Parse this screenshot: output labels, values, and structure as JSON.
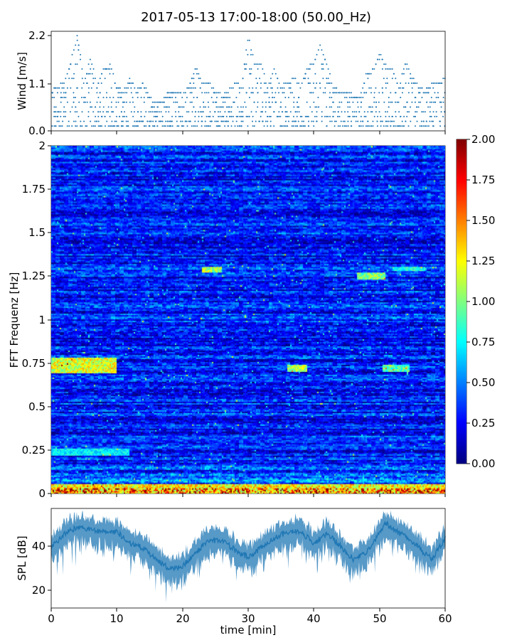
{
  "figure": {
    "title": "2017-05-13 17:00-18:00 (50.00_Hz)"
  },
  "chart_data": [
    {
      "type": "scatter",
      "ylabel": "Wind [m/s]",
      "ylim": [
        0.0,
        2.3
      ],
      "xlim": [
        0,
        60
      ],
      "yticks": [
        "0.0",
        "1.1",
        "2.2"
      ],
      "marker_color": "#1f77b4",
      "envelope_x_min": [
        0,
        2,
        3,
        4,
        5,
        6,
        7,
        8,
        9,
        10,
        11,
        12,
        13,
        14,
        15,
        16,
        17,
        18,
        19,
        20,
        21,
        22,
        23,
        24,
        25,
        26,
        27,
        28,
        29,
        30,
        31,
        32,
        33,
        34,
        35,
        36,
        37,
        38,
        39,
        40,
        41,
        42,
        43,
        44,
        45,
        46,
        47,
        48,
        49,
        50,
        51,
        52,
        53,
        54,
        55,
        56,
        57,
        58,
        59,
        60
      ],
      "envelope_max_mps": [
        0.9,
        1.1,
        1.6,
        2.2,
        1.1,
        1.7,
        1.0,
        1.4,
        1.5,
        1.0,
        0.9,
        1.2,
        0.9,
        1.1,
        0.8,
        0.6,
        0.7,
        0.9,
        0.9,
        0.8,
        1.0,
        1.5,
        1.1,
        1.1,
        0.9,
        0.8,
        0.9,
        1.1,
        1.0,
        2.2,
        1.5,
        1.5,
        1.0,
        1.4,
        1.0,
        1.1,
        1.2,
        1.0,
        1.4,
        1.6,
        2.0,
        1.5,
        1.0,
        0.9,
        0.9,
        0.8,
        0.8,
        1.3,
        1.4,
        1.8,
        1.5,
        1.4,
        1.0,
        1.6,
        1.2,
        1.0,
        0.9,
        1.1,
        1.1,
        1.2
      ]
    },
    {
      "type": "heatmap",
      "ylabel": "FFT Frequenz [Hz]",
      "ylim": [
        0,
        2
      ],
      "xlim": [
        0,
        60
      ],
      "yticks": [
        "0",
        "0.25",
        "0.5",
        "0.75",
        "1",
        "1.25",
        "1.5",
        "1.75",
        "2"
      ],
      "colormap": "jet",
      "clim": [
        0.0,
        2.0
      ],
      "colorbar_ticks": [
        "0.00",
        "0.25",
        "0.50",
        "0.75",
        "1.00",
        "1.25",
        "1.50",
        "1.75",
        "2.00"
      ],
      "hotspots": [
        {
          "t0": 0,
          "t1": 10,
          "f0": 0.69,
          "f1": 0.78,
          "amplitude": 1.3
        },
        {
          "t0": 23,
          "t1": 26,
          "f0": 1.27,
          "f1": 1.31,
          "amplitude": 1.2
        },
        {
          "t0": 36,
          "t1": 39,
          "f0": 0.7,
          "f1": 0.74,
          "amplitude": 1.2
        },
        {
          "t0": 46.5,
          "t1": 51,
          "f0": 1.23,
          "f1": 1.27,
          "amplitude": 1.1
        },
        {
          "t0": 50.5,
          "t1": 54.5,
          "f0": 0.7,
          "f1": 0.74,
          "amplitude": 1.0
        },
        {
          "t0": 52,
          "t1": 57,
          "f0": 1.28,
          "f1": 1.31,
          "amplitude": 0.9
        },
        {
          "t0": 0,
          "t1": 60,
          "f0": 0.0,
          "f1": 0.06,
          "amplitude": 1.4
        },
        {
          "t0": 0,
          "t1": 12,
          "f0": 0.22,
          "f1": 0.26,
          "amplitude": 0.8
        }
      ]
    },
    {
      "type": "line",
      "ylabel": "SPL [dB]",
      "xlabel": "time [min]",
      "xlim": [
        0,
        60
      ],
      "ylim": [
        12,
        55
      ],
      "yticks": [
        "20",
        "40"
      ],
      "xticks": [
        "0",
        "10",
        "20",
        "30",
        "40",
        "50",
        "60"
      ],
      "line_color": "#1f77b4",
      "x_min": [
        0,
        2,
        4,
        6,
        8,
        10,
        12,
        14,
        16,
        18,
        20,
        22,
        24,
        26,
        28,
        30,
        32,
        34,
        36,
        38,
        40,
        42,
        44,
        46,
        48,
        50,
        51,
        52,
        54,
        56,
        58,
        60
      ],
      "median_db": [
        38,
        44,
        47,
        46,
        45,
        45,
        40,
        38,
        33,
        29,
        30,
        36,
        41,
        41,
        37,
        34,
        38,
        42,
        45,
        45,
        40,
        44,
        39,
        33,
        36,
        44,
        49,
        46,
        43,
        38,
        33,
        42
      ]
    }
  ]
}
